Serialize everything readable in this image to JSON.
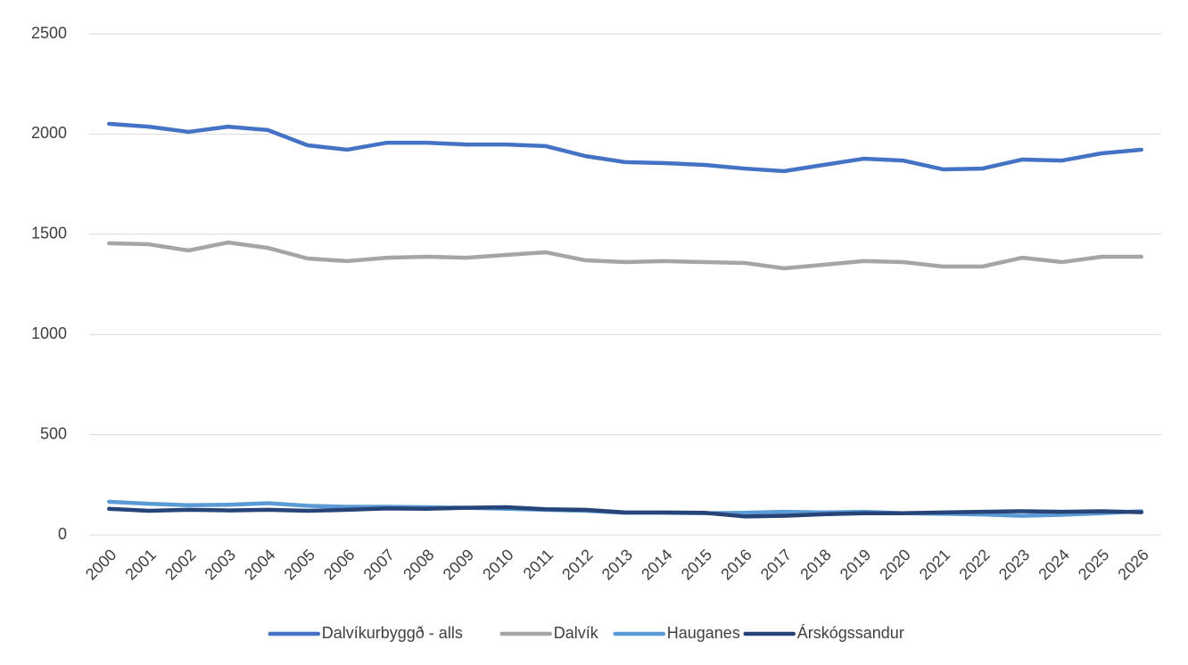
{
  "chart_data": {
    "type": "line",
    "categories": [
      "2000",
      "2001",
      "2002",
      "2003",
      "2004",
      "2005",
      "2006",
      "2007",
      "2008",
      "2009",
      "2010",
      "2011",
      "2012",
      "2013",
      "2014",
      "2015",
      "2016",
      "2017",
      "2018",
      "2019",
      "2020",
      "2021",
      "2022",
      "2023",
      "2024",
      "2025",
      "2026"
    ],
    "series": [
      {
        "name": "Dalvíkurbyggð - alls",
        "color": "#4472c4",
        "values": [
          2051,
          2037,
          2011,
          2037,
          2020,
          1944,
          1922,
          1957,
          1957,
          1948,
          1948,
          1940,
          1890,
          1860,
          1855,
          1846,
          1828,
          1815,
          1846,
          1877,
          1868,
          1824,
          1828,
          1873,
          1868,
          1904,
          1922
        ]
      },
      {
        "name": "Dalvík",
        "color": "#a5a5a5",
        "values": [
          1455,
          1450,
          1419,
          1459,
          1432,
          1379,
          1366,
          1383,
          1388,
          1383,
          1397,
          1410,
          1370,
          1361,
          1366,
          1361,
          1357,
          1330,
          1348,
          1366,
          1361,
          1339,
          1339,
          1383,
          1361,
          1388,
          1388
        ]
      },
      {
        "name": "Hauganes",
        "color": "#5b9bd5",
        "values": [
          165,
          155,
          148,
          150,
          158,
          145,
          140,
          140,
          138,
          135,
          130,
          125,
          120,
          110,
          110,
          108,
          110,
          115,
          112,
          115,
          108,
          105,
          102,
          95,
          100,
          108,
          118
        ]
      },
      {
        "name": "Árskógssandur",
        "color": "#264478",
        "values": [
          130,
          120,
          125,
          122,
          125,
          120,
          125,
          132,
          130,
          135,
          138,
          128,
          125,
          112,
          112,
          110,
          92,
          95,
          103,
          108,
          108,
          112,
          115,
          118,
          115,
          118,
          113
        ]
      }
    ],
    "ylim": [
      0,
      2500
    ],
    "yticks": [
      0,
      500,
      1000,
      1500,
      2000,
      2500
    ],
    "grid": true,
    "legend": "bottom"
  }
}
